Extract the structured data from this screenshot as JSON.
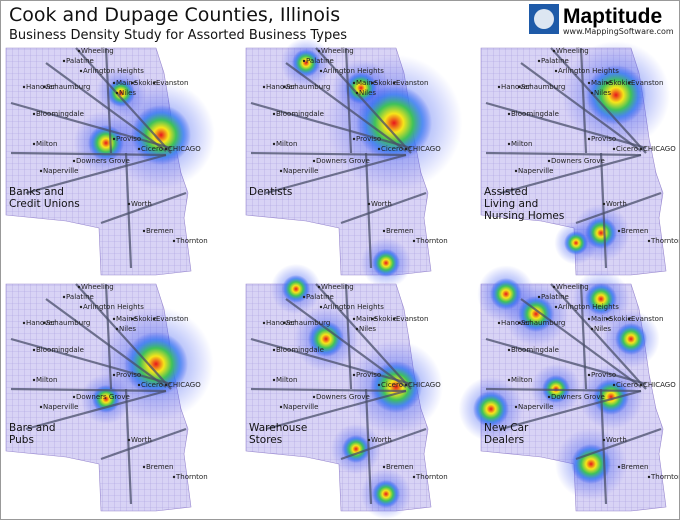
{
  "header": {
    "title": "Cook and Dupage Counties, Illinois",
    "subtitle": "Business Density Study for Assorted Business Types"
  },
  "logo": {
    "name": "Maptitude",
    "url": "www.MappingSoftware.com"
  },
  "cities": [
    "Wheeling",
    "Palatine",
    "Arlington Heights",
    "Hanover",
    "Schaumburg",
    "Maine",
    "Skokie",
    "Niles",
    "Evanston",
    "Bloomingdale",
    "Proviso",
    "Milton",
    "Cicero",
    "CHICAGO",
    "Downers Grove",
    "Naperville",
    "Worth",
    "Bremen",
    "Thornton"
  ],
  "panels": [
    {
      "label": [
        "Banks and",
        "Credit Unions"
      ]
    },
    {
      "label": [
        "Dentists"
      ]
    },
    {
      "label": [
        "Assisted",
        "Living and",
        "Nursing Homes"
      ]
    },
    {
      "label": [
        "Bars and",
        "Pubs"
      ]
    },
    {
      "label": [
        "Warehouse",
        "Stores"
      ]
    },
    {
      "label": [
        "New Car",
        "Dealers"
      ]
    }
  ]
}
